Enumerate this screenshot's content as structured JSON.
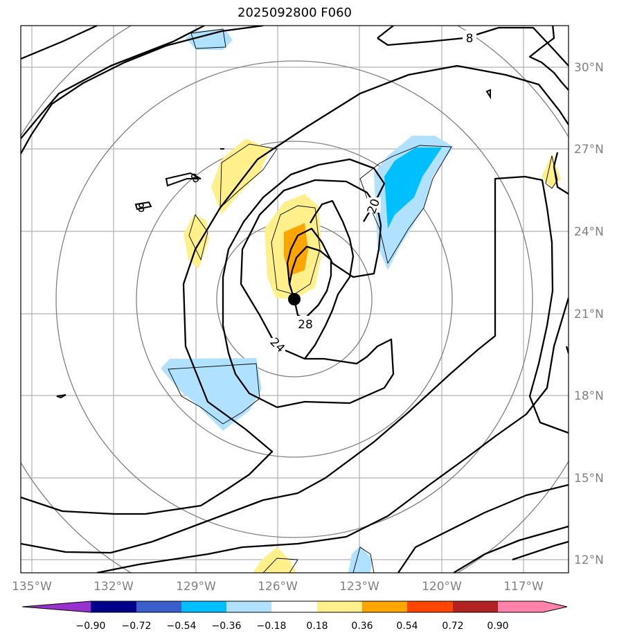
{
  "title": "2025092800 F060",
  "map": {
    "lon_ticks": [
      "135°W",
      "132°W",
      "129°W",
      "126°W",
      "123°W",
      "120°W",
      "117°W"
    ],
    "lat_ticks": [
      "30°N",
      "27°N",
      "24°N",
      "21°N",
      "18°N",
      "15°N",
      "12°N"
    ],
    "contour_labels": [
      "8",
      "8",
      "8",
      "20",
      "24",
      "28"
    ],
    "storm_center": {
      "lon": -125.5,
      "lat": 21.5
    },
    "gridlines": true
  },
  "colorbar": {
    "ticks": [
      "−0.90",
      "−0.72",
      "−0.54",
      "−0.36",
      "−0.18",
      "0.18",
      "0.36",
      "0.54",
      "0.72",
      "0.90"
    ],
    "colors": [
      "#9932cc",
      "#00008b",
      "#3a5fcd",
      "#00bfff",
      "#b0e2ff",
      "#ffffff",
      "#fff08c",
      "#ffa500",
      "#ff4500",
      "#b22222",
      "#ff82ab"
    ]
  }
}
